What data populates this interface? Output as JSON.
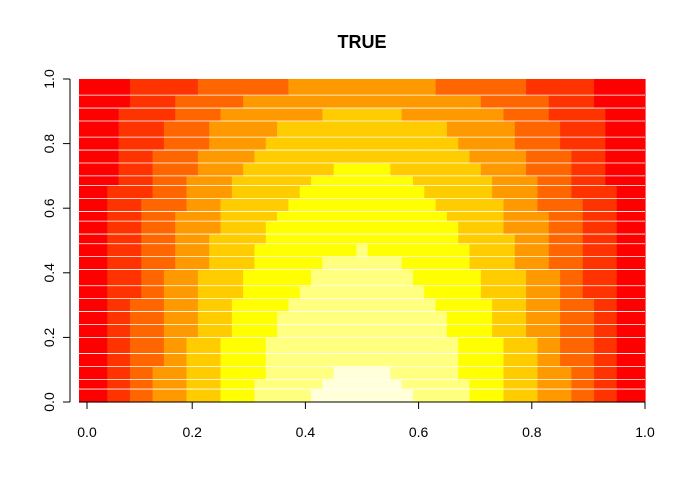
{
  "chart_data": {
    "type": "heatmap",
    "title": "TRUE",
    "xlabel": "",
    "ylabel": "",
    "xlim": [
      0,
      1
    ],
    "ylim": [
      0,
      1
    ],
    "x_ticks": [
      "0.0",
      "0.2",
      "0.4",
      "0.6",
      "0.8",
      "1.0"
    ],
    "y_ticks": [
      "0.0",
      "0.2",
      "0.4",
      "0.6",
      "0.8",
      "1.0"
    ],
    "x_tick_values": [
      0,
      0.2,
      0.4,
      0.6,
      0.8,
      1.0
    ],
    "y_tick_values": [
      0,
      0.2,
      0.4,
      0.6,
      0.8,
      1.0
    ],
    "grid": {
      "nx": 51,
      "ny": 25,
      "y_edges": [
        0,
        0.04,
        0.07,
        0.11,
        0.15,
        0.2,
        0.24,
        0.28,
        0.32,
        0.36,
        0.41,
        0.45,
        0.49,
        0.52,
        0.56,
        0.59,
        0.63,
        0.67,
        0.7,
        0.74,
        0.78,
        0.82,
        0.87,
        0.91,
        0.95,
        1.0
      ]
    },
    "palette": [
      "#FF0000",
      "#FF3300",
      "#FF6600",
      "#FF9900",
      "#FFCC00",
      "#FFFF00",
      "#FFFF80",
      "#FFFFD9"
    ],
    "row_separator_color": "#FFFFFF",
    "level_function": "level = 7.3 * sin(pi * x) * (0.35 + 0.65 * (1 - y)^0.5), clipped to 0..7"
  }
}
